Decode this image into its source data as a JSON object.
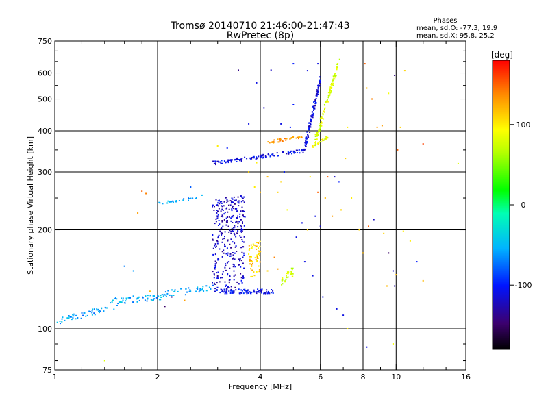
{
  "chart_data": {
    "type": "scatter",
    "title": "Tromsø 20140710 21:46:00-21:47:43",
    "subtitle": "RwPretec (8p)",
    "xlabel": "Frequency [MHz]",
    "ylabel": "Stationary phase Virtual Height [km]",
    "xscale": "log",
    "yscale": "log",
    "xlim": [
      1,
      16
    ],
    "ylim": [
      75,
      750
    ],
    "x_ticks": [
      1,
      2,
      4,
      6,
      8,
      10,
      16
    ],
    "x_tick_labels": [
      "1",
      "2",
      "4",
      "6",
      "8",
      "10",
      "16"
    ],
    "y_ticks": [
      75,
      100,
      200,
      300,
      400,
      500,
      600,
      750
    ],
    "y_tick_labels": [
      "75",
      "100",
      "200",
      "300",
      "400",
      "500",
      "600",
      "750"
    ],
    "x_gridlines": [
      2,
      4,
      6,
      8,
      10
    ],
    "y_gridlines": [
      100,
      200,
      300,
      400,
      500,
      600
    ],
    "x_minor_ticks": [
      1.2,
      1.4,
      1.6,
      1.8,
      2.5,
      3,
      3.5,
      5,
      7,
      9,
      12,
      14
    ],
    "y_minor_ticks": [
      80,
      90,
      150,
      250,
      350,
      450,
      550,
      650,
      700
    ],
    "grid": true,
    "info_box": {
      "heading": "Phases",
      "lines": [
        "mean, sd,O: -77.3, 19.9",
        "mean, sd,X:  95.8, 25.2"
      ]
    },
    "colorbar": {
      "label": "[deg]",
      "range": [
        -180,
        180
      ],
      "ticks": [
        100,
        0,
        -100
      ],
      "tick_labels": [
        "100",
        "0",
        "-100"
      ],
      "colormap": "rainbow"
    },
    "traces": [
      {
        "x0": 1.0,
        "x1": 1.55,
        "y0": 102,
        "y1": 116,
        "dy": 5,
        "phase": -60,
        "n": 55,
        "spread": 0.015
      },
      {
        "x0": 1.45,
        "x1": 2.1,
        "y0": 118,
        "y1": 123,
        "dy": 6,
        "phase": -55,
        "n": 50,
        "spread": 0.015
      },
      {
        "x0": 2.0,
        "x1": 2.9,
        "y0": 124,
        "y1": 130,
        "dy": 6,
        "phase": -60,
        "n": 45,
        "spread": 0.015
      },
      {
        "x0": 2.9,
        "x1": 3.6,
        "y0": 128,
        "y1": 135,
        "dy": 120,
        "phase": -120,
        "n": 320,
        "spread": 0.01
      },
      {
        "x0": 3.0,
        "x1": 4.4,
        "y0": 128,
        "y1": 128,
        "dy": 4,
        "phase": -110,
        "n": 90,
        "spread": 0.012
      },
      {
        "x0": 3.7,
        "x1": 4.0,
        "y0": 140,
        "y1": 145,
        "dy": 40,
        "phase": 110,
        "n": 55,
        "spread": 0.01
      },
      {
        "x0": 4.6,
        "x1": 5.0,
        "y0": 132,
        "y1": 145,
        "dy": 10,
        "phase": 75,
        "n": 30,
        "spread": 0.01
      },
      {
        "x0": 2.0,
        "x1": 2.6,
        "y0": 238,
        "y1": 248,
        "dy": 4,
        "phase": -60,
        "n": 25,
        "spread": 0.01
      },
      {
        "x0": 2.9,
        "x1": 5.5,
        "y0": 315,
        "y1": 345,
        "dy": 8,
        "phase": -110,
        "n": 120,
        "spread": 0.012
      },
      {
        "x0": 5.4,
        "x1": 6.0,
        "y0": 345,
        "y1": 560,
        "dy": 25,
        "phase": -115,
        "n": 110,
        "spread": 0.01
      },
      {
        "x0": 4.2,
        "x1": 5.3,
        "y0": 365,
        "y1": 380,
        "dy": 8,
        "phase": 130,
        "n": 40,
        "spread": 0.01
      },
      {
        "x0": 5.8,
        "x1": 6.8,
        "y0": 360,
        "y1": 640,
        "dy": 25,
        "phase": 80,
        "n": 110,
        "spread": 0.01
      },
      {
        "x0": 5.7,
        "x1": 6.3,
        "y0": 355,
        "y1": 380,
        "dy": 6,
        "phase": 90,
        "n": 30,
        "spread": 0.01
      }
    ],
    "scatter_points": [
      [
        3.45,
        612,
        -140
      ],
      [
        3.9,
        560,
        -110
      ],
      [
        4.3,
        612,
        -120
      ],
      [
        5.0,
        640,
        -100
      ],
      [
        5.9,
        640,
        -110
      ],
      [
        7.2,
        410,
        100
      ],
      [
        7.1,
        330,
        110
      ],
      [
        8.1,
        640,
        150
      ],
      [
        8.2,
        540,
        120
      ],
      [
        8.5,
        500,
        140
      ],
      [
        8.8,
        410,
        130
      ],
      [
        9.1,
        415,
        130
      ],
      [
        9.5,
        520,
        90
      ],
      [
        9.9,
        590,
        -140
      ],
      [
        10.3,
        410,
        110
      ],
      [
        10.6,
        610,
        110
      ],
      [
        10.1,
        350,
        150
      ],
      [
        12.0,
        365,
        160
      ],
      [
        15.2,
        318,
        80
      ],
      [
        6.6,
        290,
        -120
      ],
      [
        6.8,
        280,
        -100
      ],
      [
        6.3,
        290,
        150
      ],
      [
        6.9,
        230,
        110
      ],
      [
        7.4,
        250,
        100
      ],
      [
        7.8,
        200,
        110
      ],
      [
        8.3,
        205,
        150
      ],
      [
        8.0,
        170,
        120
      ],
      [
        8.6,
        215,
        -120
      ],
      [
        9.2,
        195,
        110
      ],
      [
        9.5,
        170,
        -150
      ],
      [
        9.8,
        150,
        -120
      ],
      [
        9.9,
        135,
        -130
      ],
      [
        10.0,
        146,
        120
      ],
      [
        10.5,
        198,
        100
      ],
      [
        11.0,
        185,
        100
      ],
      [
        11.5,
        160,
        -100
      ],
      [
        12.0,
        140,
        120
      ],
      [
        9.4,
        135,
        120
      ],
      [
        7.0,
        110,
        -110
      ],
      [
        6.7,
        115,
        -110
      ],
      [
        7.2,
        100,
        100
      ],
      [
        8.2,
        88,
        -110
      ],
      [
        9.8,
        90,
        90
      ],
      [
        6.1,
        125,
        -110
      ],
      [
        5.7,
        145,
        -110
      ],
      [
        5.4,
        160,
        -110
      ],
      [
        5.1,
        190,
        -110
      ],
      [
        5.5,
        200,
        110
      ],
      [
        5.3,
        210,
        -110
      ],
      [
        4.8,
        230,
        90
      ],
      [
        4.5,
        260,
        110
      ],
      [
        4.6,
        280,
        110
      ],
      [
        4.7,
        300,
        -100
      ],
      [
        4.2,
        290,
        120
      ],
      [
        4.0,
        260,
        120
      ],
      [
        3.85,
        270,
        100
      ],
      [
        3.7,
        300,
        110
      ],
      [
        3.9,
        320,
        100
      ],
      [
        3.7,
        420,
        -110
      ],
      [
        4.9,
        410,
        -100
      ],
      [
        4.6,
        420,
        -110
      ],
      [
        4.1,
        470,
        -120
      ],
      [
        5.0,
        480,
        -100
      ],
      [
        5.6,
        290,
        100
      ],
      [
        5.9,
        260,
        150
      ],
      [
        6.2,
        250,
        120
      ],
      [
        6.5,
        220,
        130
      ],
      [
        5.8,
        220,
        -110
      ],
      [
        6.0,
        205,
        -120
      ],
      [
        1.8,
        262,
        150
      ],
      [
        1.85,
        258,
        140
      ],
      [
        1.75,
        225,
        130
      ],
      [
        1.7,
        150,
        -60
      ],
      [
        1.9,
        130,
        120
      ],
      [
        1.4,
        80,
        80
      ],
      [
        1.6,
        155,
        -70
      ],
      [
        2.2,
        125,
        -140
      ],
      [
        2.4,
        122,
        130
      ],
      [
        2.1,
        117,
        -150
      ],
      [
        2.5,
        270,
        -80
      ],
      [
        2.6,
        250,
        -60
      ],
      [
        2.7,
        255,
        -50
      ],
      [
        3.0,
        360,
        100
      ],
      [
        3.2,
        355,
        -100
      ],
      [
        3.8,
        158,
        130
      ],
      [
        4.4,
        165,
        140
      ],
      [
        4.2,
        150,
        110
      ],
      [
        4.5,
        152,
        130
      ],
      [
        5.2,
        350,
        -100
      ],
      [
        5.5,
        610,
        -110
      ]
    ]
  }
}
